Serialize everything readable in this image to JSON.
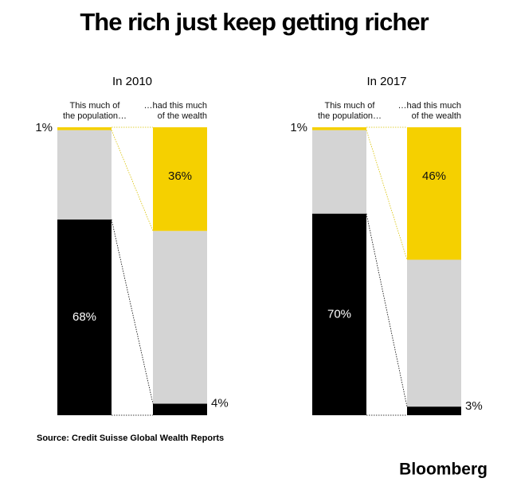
{
  "title": "The rich just keep getting richer",
  "source": "Source: Credit Suisse Global Wealth Reports",
  "brand": "Bloomberg",
  "chart_data": [
    {
      "type": "bar",
      "title": "In 2010",
      "categories": [
        "This much of\nthe population…",
        "…had this much\nof the wealth"
      ],
      "ylim": [
        0,
        100
      ],
      "series": [
        {
          "color": "#f5d000",
          "values": [
            1,
            36
          ],
          "value_labels": [
            "1%",
            "36%"
          ]
        },
        {
          "color": "#d4d4d4",
          "values": [
            31,
            60
          ]
        },
        {
          "color": "#000000",
          "values": [
            68,
            4
          ],
          "value_labels": [
            "68%",
            "4%"
          ]
        }
      ]
    },
    {
      "type": "bar",
      "title": "In 2017",
      "categories": [
        "This much of\nthe population…",
        "…had this much\nof the wealth"
      ],
      "ylim": [
        0,
        100
      ],
      "series": [
        {
          "color": "#f5d000",
          "values": [
            1,
            46
          ],
          "value_labels": [
            "1%",
            "46%"
          ]
        },
        {
          "color": "#d4d4d4",
          "values": [
            29,
            51
          ]
        },
        {
          "color": "#000000",
          "values": [
            70,
            3
          ],
          "value_labels": [
            "70%",
            "3%"
          ]
        }
      ]
    }
  ]
}
